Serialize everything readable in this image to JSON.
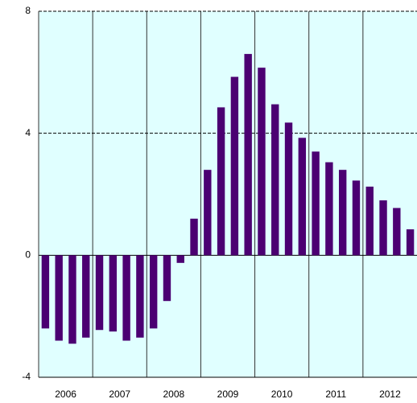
{
  "chart_data": {
    "type": "bar",
    "categories": [
      null,
      "2006",
      null,
      null,
      null,
      "2007",
      null,
      null,
      null,
      "2008",
      null,
      null,
      null,
      "2009",
      null,
      null,
      null,
      "2010",
      null,
      null,
      null,
      "2011",
      null,
      null,
      null,
      "2012",
      null,
      null
    ],
    "values": [
      -2.4,
      -2.8,
      -2.9,
      -2.7,
      -2.45,
      -2.5,
      -2.8,
      -2.7,
      -2.4,
      -1.5,
      -0.25,
      1.2,
      2.8,
      4.85,
      5.85,
      6.6,
      6.15,
      4.95,
      4.35,
      3.85,
      3.4,
      3.05,
      2.8,
      2.45,
      2.25,
      1.8,
      1.55,
      0.85
    ],
    "color": "#4b0072",
    "ylim": [
      -4,
      8
    ],
    "yticks": [
      -4,
      0,
      4,
      8
    ],
    "grid": true
  }
}
